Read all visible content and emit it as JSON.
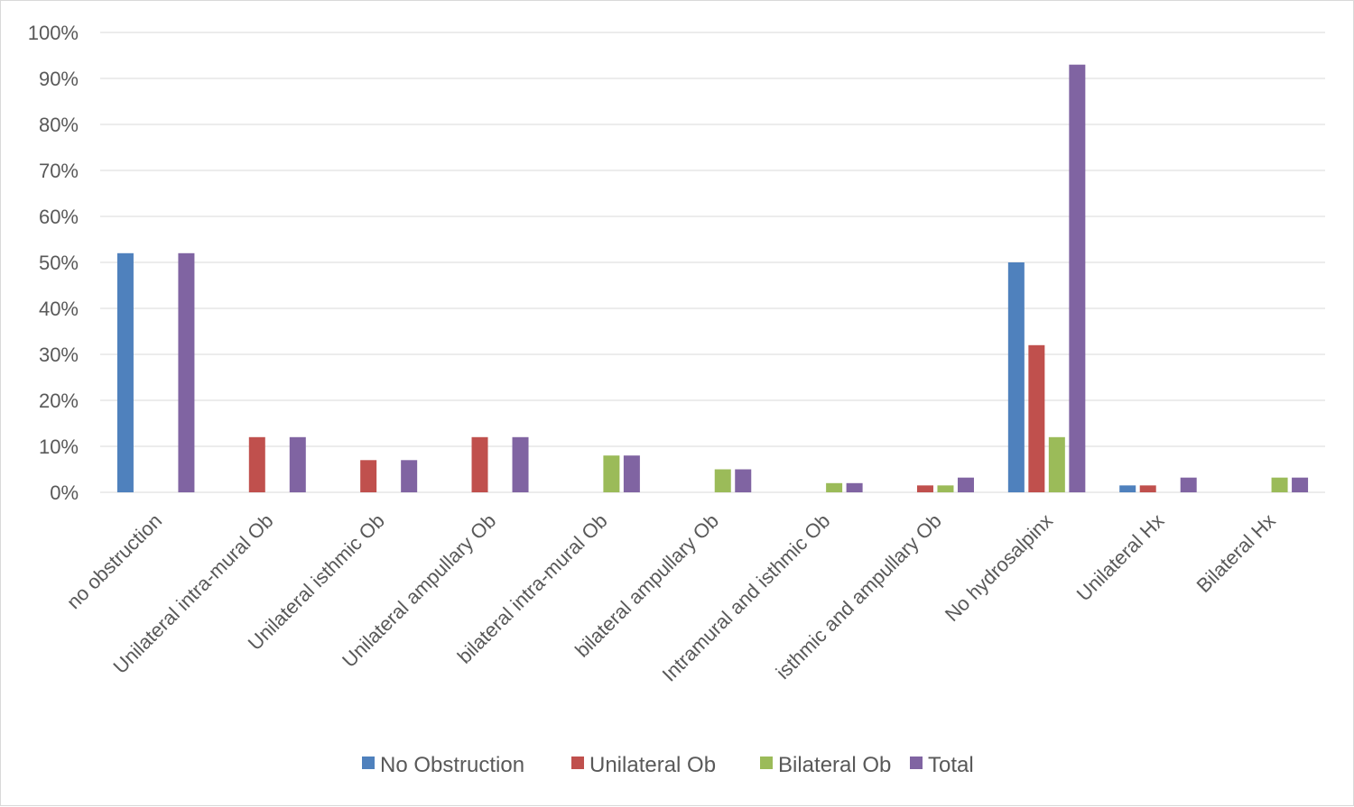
{
  "chart_data": {
    "type": "bar",
    "title": "",
    "xlabel": "",
    "ylabel": "",
    "ylim": [
      0,
      100
    ],
    "y_unit": "%",
    "y_ticks": [
      "0%",
      "10%",
      "20%",
      "30%",
      "40%",
      "50%",
      "60%",
      "70%",
      "80%",
      "90%",
      "100%"
    ],
    "grid": true,
    "legend_position": "bottom",
    "categories": [
      "no obstruction",
      "Unilateral intra-mural Ob",
      "Unilateral isthmic Ob",
      "Unilateral ampullary Ob",
      "bilateral intra-mural Ob",
      "bilateral ampullary Ob",
      "Intramural and isthmic Ob",
      "isthmic and ampullary Ob",
      "No hydrosalpinx",
      "Unilateral Hx",
      "Bilateral Hx"
    ],
    "series": [
      {
        "name": "No Obstruction",
        "color": "#4f81bd",
        "values": [
          52,
          0,
          0,
          0,
          0,
          0,
          0,
          0,
          50,
          1.5,
          0
        ]
      },
      {
        "name": "Unilateral Ob",
        "color": "#c0504d",
        "values": [
          0,
          12,
          7,
          12,
          0,
          0,
          0,
          1.5,
          32,
          1.5,
          0
        ]
      },
      {
        "name": "Bilateral Ob",
        "color": "#9bbb59",
        "values": [
          0,
          0,
          0,
          0,
          8,
          5,
          2,
          1.5,
          12,
          0,
          3.2
        ]
      },
      {
        "name": "Total",
        "color": "#8064a2",
        "values": [
          52,
          12,
          7,
          12,
          8,
          5,
          2,
          3.2,
          93,
          3.2,
          3.2
        ]
      }
    ]
  },
  "colors": {
    "grid": "#d9d9d9",
    "axis_text": "#595959",
    "frame": "#d9d9d9"
  }
}
